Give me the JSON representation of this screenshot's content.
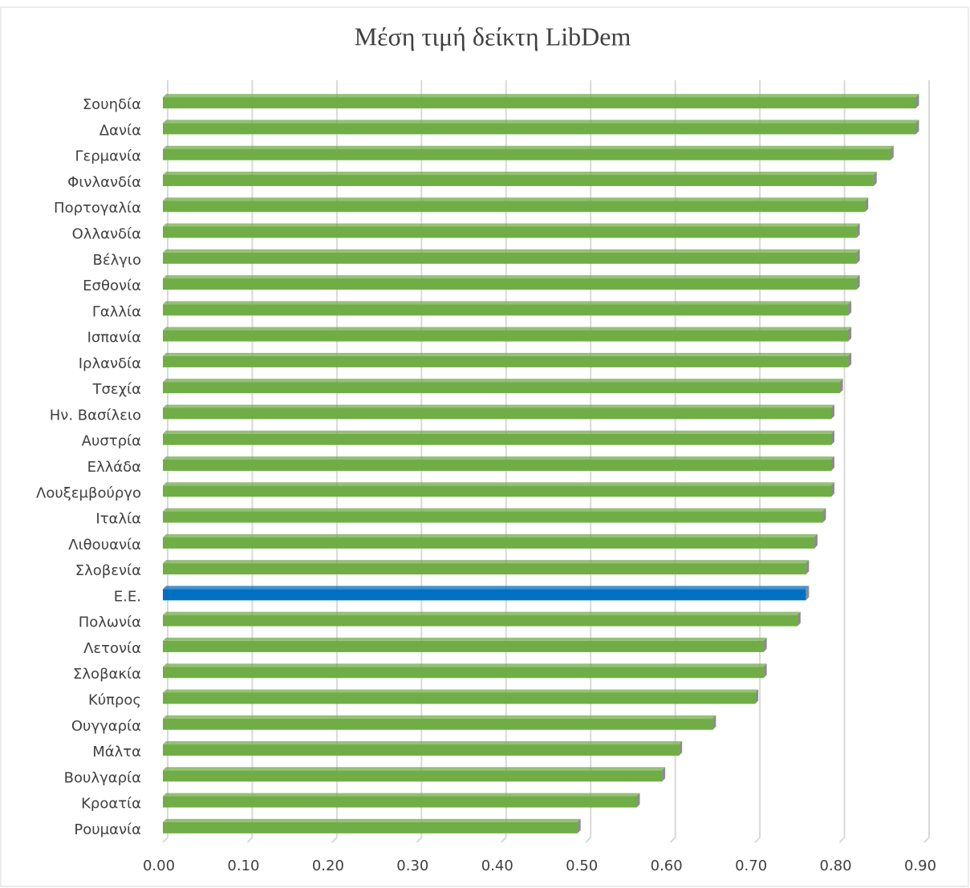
{
  "chart_data": {
    "type": "bar",
    "orientation": "horizontal",
    "title": "Μέση τιμή δείκτη LibDem",
    "categories": [
      "Σουηδία",
      "Δανία",
      "Γερμανία",
      "Φινλανδία",
      "Πορτογαλία",
      "Ολλανδία",
      "Βέλγιο",
      "Εσθονία",
      "Γαλλία",
      "Ισπανία",
      "Ιρλανδία",
      "Τσεχία",
      "Ην. Βασίλειο",
      "Αυστρία",
      "Ελλάδα",
      "Λουξεμβούργο",
      "Ιταλία",
      "Λιθουανία",
      "Σλοβενία",
      "Ε.Ε.",
      "Πολωνία",
      "Λετονία",
      "Σλοβακία",
      "Κύπρος",
      "Ουγγαρία",
      "Μάλτα",
      "Βουλγαρία",
      "Κροατία",
      "Ρουμανία"
    ],
    "values": [
      0.89,
      0.89,
      0.86,
      0.84,
      0.83,
      0.82,
      0.82,
      0.82,
      0.81,
      0.81,
      0.81,
      0.8,
      0.79,
      0.79,
      0.79,
      0.79,
      0.78,
      0.77,
      0.76,
      0.76,
      0.75,
      0.71,
      0.71,
      0.7,
      0.65,
      0.61,
      0.59,
      0.56,
      0.49
    ],
    "colors": [
      "#70ad47",
      "#70ad47",
      "#70ad47",
      "#70ad47",
      "#70ad47",
      "#70ad47",
      "#70ad47",
      "#70ad47",
      "#70ad47",
      "#70ad47",
      "#70ad47",
      "#70ad47",
      "#70ad47",
      "#70ad47",
      "#70ad47",
      "#70ad47",
      "#70ad47",
      "#70ad47",
      "#70ad47",
      "#0070c0",
      "#70ad47",
      "#70ad47",
      "#70ad47",
      "#70ad47",
      "#70ad47",
      "#70ad47",
      "#70ad47",
      "#70ad47",
      "#70ad47"
    ],
    "xlim": [
      0,
      0.9
    ],
    "xticks": [
      {
        "value": 0,
        "label": "0.00"
      },
      {
        "value": 0.1,
        "label": "0.10"
      },
      {
        "value": 0.2,
        "label": "0.20"
      },
      {
        "value": 0.3,
        "label": "0.30"
      },
      {
        "value": 0.4,
        "label": "0.40"
      },
      {
        "value": 0.5,
        "label": "0.50"
      },
      {
        "value": 0.6,
        "label": "0.60"
      },
      {
        "value": 0.7,
        "label": "0.70"
      },
      {
        "value": 0.8,
        "label": "0.80"
      },
      {
        "value": 0.9,
        "label": "0.90"
      }
    ],
    "grid": true
  }
}
